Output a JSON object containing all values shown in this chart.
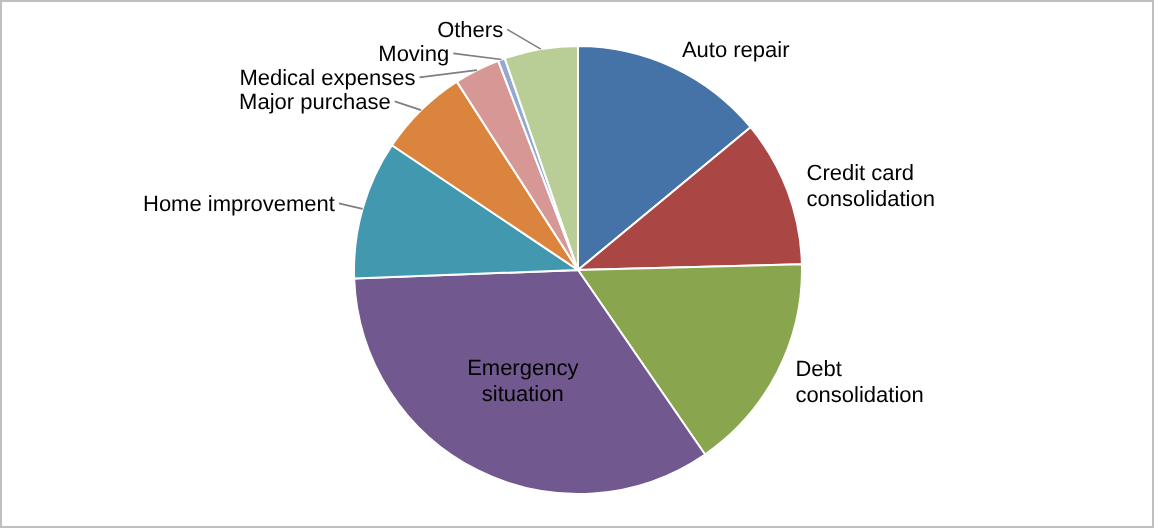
{
  "chart_data": {
    "type": "pie",
    "categories": [
      "Auto repair",
      "Credit card consolidation",
      "Debt consolidation",
      "Emergency situation",
      "Home improvement",
      "Major purchase",
      "Medical expenses",
      "Moving",
      "Others"
    ],
    "values": [
      14.0,
      10.6,
      15.8,
      34.0,
      10.0,
      6.5,
      3.3,
      0.5,
      5.3
    ],
    "colors": [
      "#4572a7",
      "#aa4643",
      "#89a54e",
      "#71588f",
      "#4198af",
      "#db843d",
      "#d69795",
      "#93a9cf",
      "#b9cd96"
    ]
  }
}
